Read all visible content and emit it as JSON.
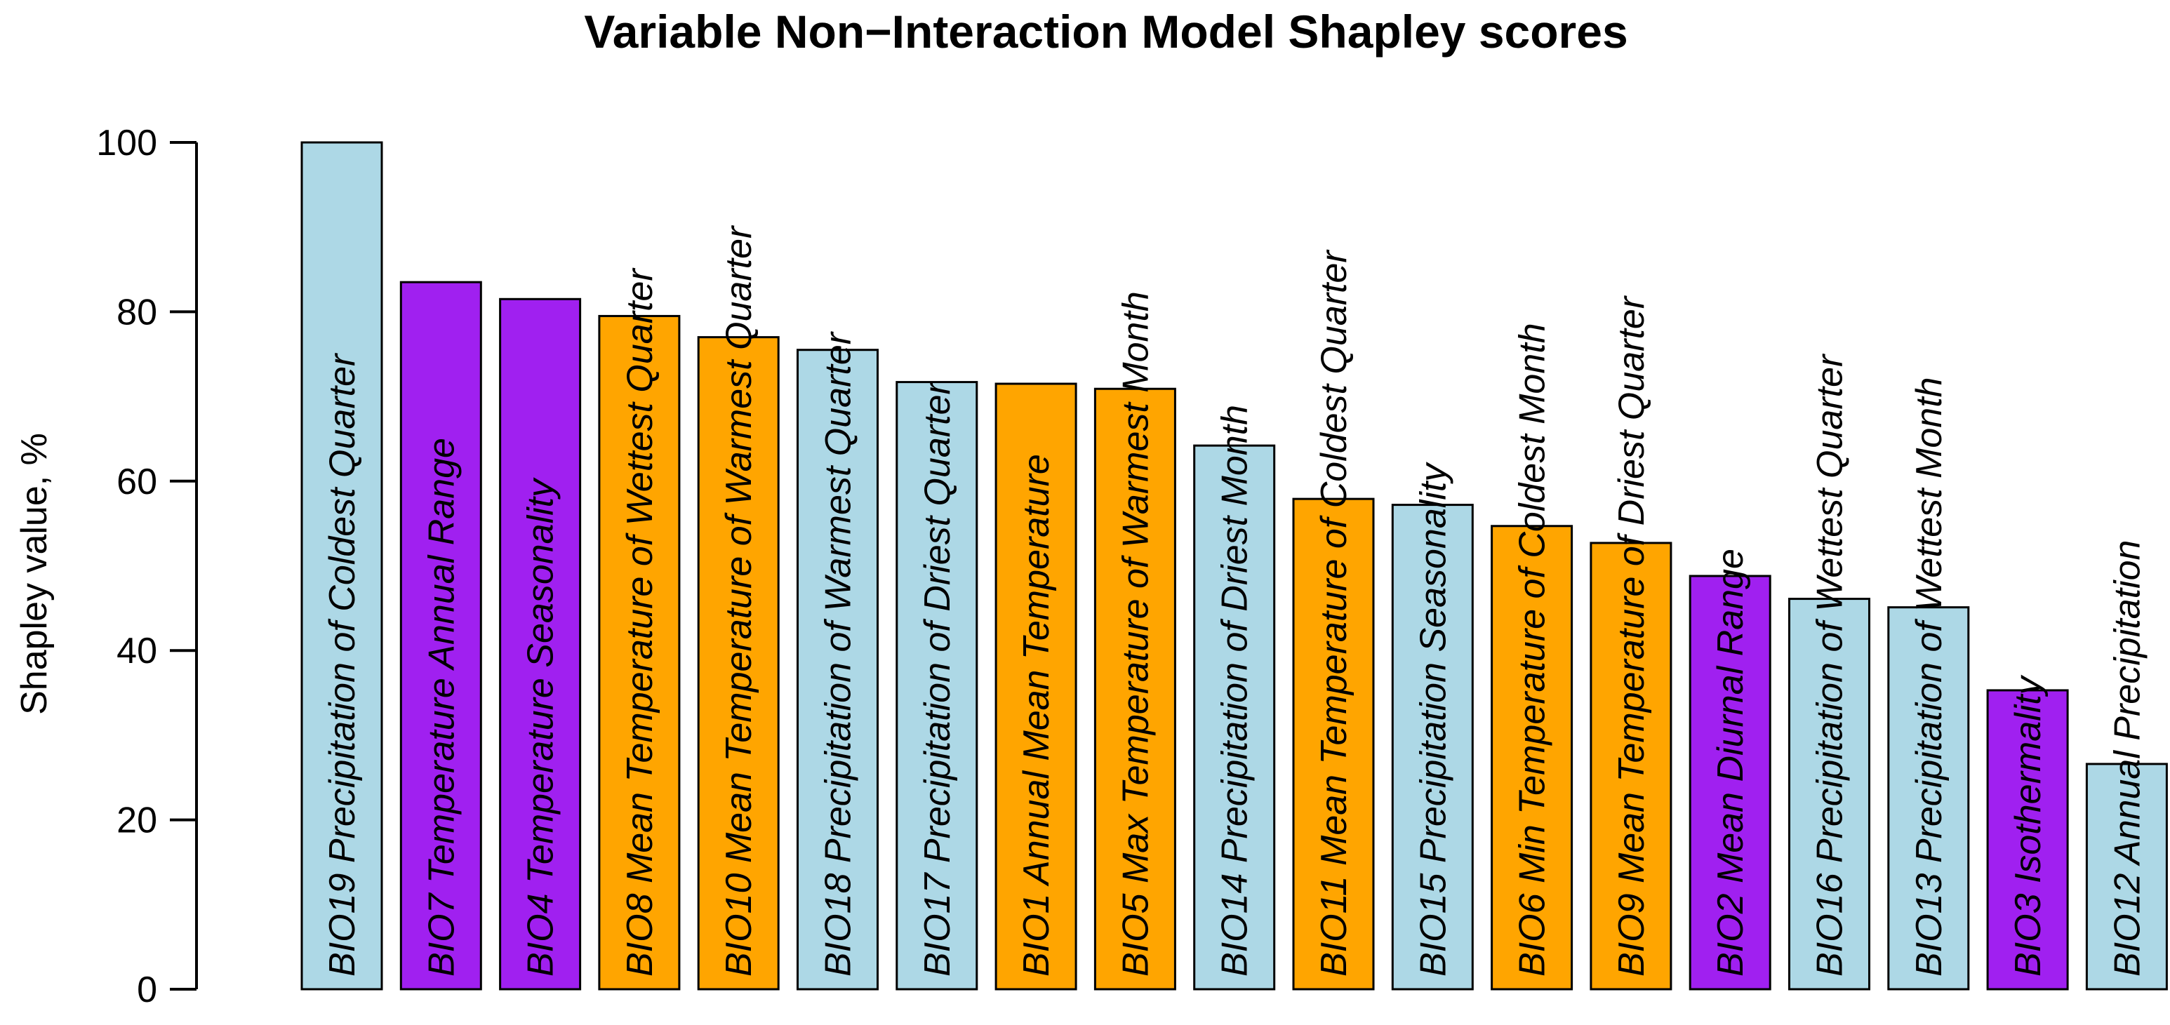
{
  "chart_data": {
    "type": "bar",
    "title": "Variable Non−Interaction Model Shapley scores",
    "xlabel": "",
    "ylabel": "Shapley value, %",
    "ylim": [
      0,
      100
    ],
    "yticks": [
      0,
      20,
      40,
      60,
      80,
      100
    ],
    "categories": [
      "BIO19 Precipitation of Coldest Quarter",
      "BIO7 Temperature Annual Range",
      "BIO4 Temperature Seasonality",
      "BIO8 Mean Temperature of Wettest Quarter",
      "BIO10 Mean Temperature of Warmest Quarter",
      "BIO18 Precipitation of Warmest Quarter",
      "BIO17 Precipitation of Driest Quarter",
      "BIO1 Annual Mean Temperature",
      "BIO5 Max Temperature of Warmest Month",
      "BIO14 Precipitation of Driest Month",
      "BIO11 Mean Temperature of Coldest Quarter",
      "BIO15 Precipitation Seasonality",
      "BIO6 Min Temperature of Coldest Month",
      "BIO9 Mean Temperature of Driest Quarter",
      "BIO2 Mean Diurnal Range",
      "BIO16 Precipitation of Wettest Quarter",
      "BIO13 Precipitation of Wettest Month",
      "BIO3 Isothermality",
      "BIO12 Annual Precipitation"
    ],
    "values": [
      100,
      83.5,
      81.5,
      79.5,
      77,
      75.5,
      71.7,
      71.5,
      70.9,
      64.2,
      57.9,
      57.2,
      54.7,
      52.7,
      48.8,
      46.1,
      45.1,
      35.3,
      26.6
    ],
    "colors": [
      "#ADD8E6",
      "#A020F0",
      "#A020F0",
      "#FFA500",
      "#FFA500",
      "#ADD8E6",
      "#ADD8E6",
      "#FFA500",
      "#FFA500",
      "#ADD8E6",
      "#FFA500",
      "#ADD8E6",
      "#FFA500",
      "#FFA500",
      "#A020F0",
      "#ADD8E6",
      "#ADD8E6",
      "#A020F0",
      "#ADD8E6"
    ]
  }
}
